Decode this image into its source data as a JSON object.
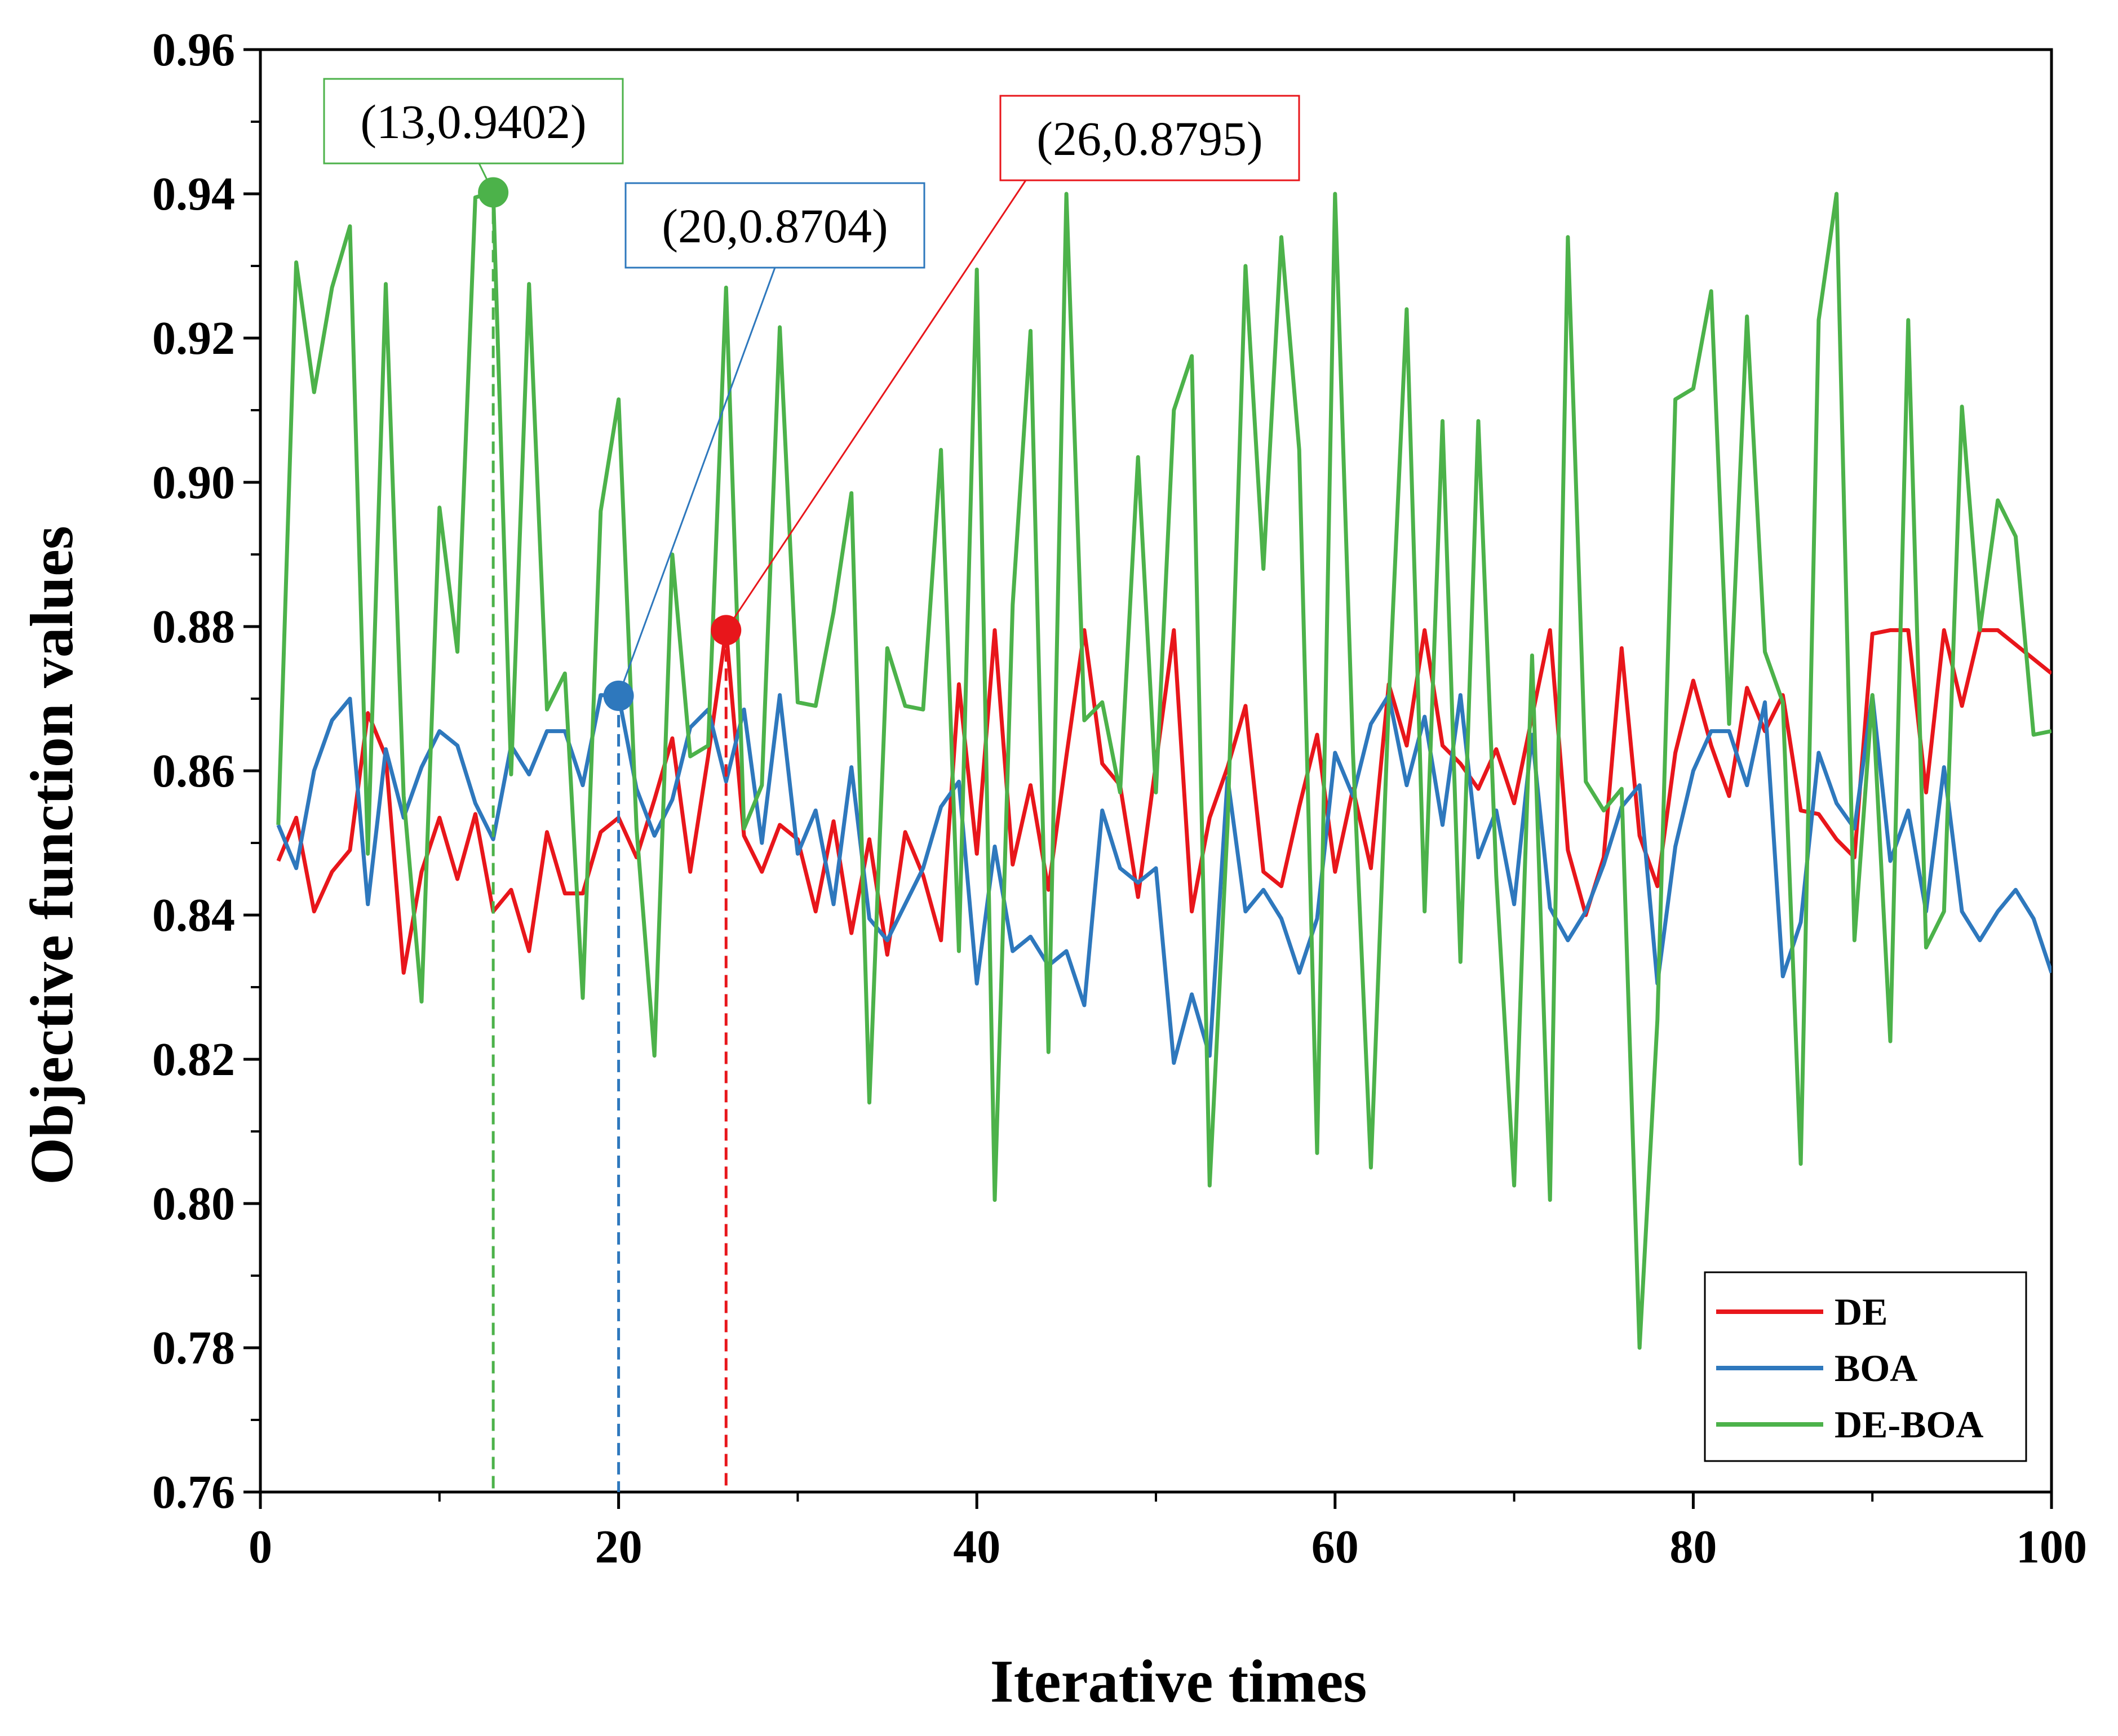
{
  "chart_data": {
    "type": "line",
    "title": "",
    "xlabel": "Iterative times",
    "ylabel": "Objective function values",
    "xlim": [
      0,
      100
    ],
    "ylim": [
      0.76,
      0.96
    ],
    "xticks": [
      0,
      20,
      40,
      60,
      80,
      100
    ],
    "xtick_labels": [
      "0",
      "20",
      "40",
      "60",
      "80",
      "100"
    ],
    "yticks": [
      0.76,
      0.78,
      0.8,
      0.82,
      0.84,
      0.86,
      0.88,
      0.9,
      0.92,
      0.94,
      0.96
    ],
    "ytick_labels": [
      "0.76",
      "0.78",
      "0.80",
      "0.82",
      "0.84",
      "0.86",
      "0.88",
      "0.90",
      "0.92",
      "0.94",
      "0.96"
    ],
    "legend_position": "bottom-right",
    "grid": false,
    "x": [
      1,
      2,
      3,
      4,
      5,
      6,
      7,
      8,
      9,
      10,
      11,
      12,
      13,
      14,
      15,
      16,
      17,
      18,
      19,
      20,
      21,
      22,
      23,
      24,
      25,
      26,
      27,
      28,
      29,
      30,
      31,
      32,
      33,
      34,
      35,
      36,
      37,
      38,
      39,
      40,
      41,
      42,
      43,
      44,
      45,
      46,
      47,
      48,
      49,
      50,
      51,
      52,
      53,
      54,
      55,
      56,
      57,
      58,
      59,
      60,
      61,
      62,
      63,
      64,
      65,
      66,
      67,
      68,
      69,
      70,
      71,
      72,
      73,
      74,
      75,
      76,
      77,
      78,
      79,
      80,
      81,
      82,
      83,
      84,
      85,
      86,
      87,
      88,
      89,
      90,
      91,
      92,
      93,
      94,
      95,
      96,
      97,
      98,
      99,
      100
    ],
    "series": [
      {
        "name": "DE",
        "color": "#e8161b",
        "values": [
          0.8475,
          0.8535,
          0.8405,
          0.846,
          0.849,
          0.868,
          0.862,
          0.832,
          0.846,
          0.8535,
          0.845,
          0.854,
          0.8405,
          0.8435,
          0.835,
          0.8515,
          0.843,
          0.843,
          0.8515,
          0.8535,
          0.848,
          0.856,
          0.8645,
          0.846,
          0.862,
          0.8795,
          0.851,
          0.846,
          0.8525,
          0.8505,
          0.8405,
          0.853,
          0.8375,
          0.8505,
          0.8345,
          0.8515,
          0.8455,
          0.8365,
          0.872,
          0.8485,
          0.8795,
          0.847,
          0.858,
          0.8435,
          0.862,
          0.8795,
          0.861,
          0.858,
          0.8425,
          0.861,
          0.8795,
          0.8405,
          0.8535,
          0.8605,
          0.869,
          0.846,
          0.844,
          0.855,
          0.865,
          0.846,
          0.8575,
          0.8465,
          0.872,
          0.8635,
          0.8795,
          0.8635,
          0.861,
          0.8575,
          0.863,
          0.8555,
          0.8675,
          0.8795,
          0.849,
          0.84,
          0.848,
          0.877,
          0.851,
          0.844,
          0.8625,
          0.8725,
          0.8635,
          0.8565,
          0.8715,
          0.8655,
          0.8705,
          0.8545,
          0.854,
          0.8505,
          0.848,
          0.879,
          0.8795,
          0.8795,
          0.857,
          0.8795,
          0.869,
          0.8795,
          0.8795,
          0.8775,
          0.8755,
          0.8735
        ]
      },
      {
        "name": "BOA",
        "color": "#2e78bd",
        "values": [
          0.8525,
          0.8465,
          0.86,
          0.867,
          0.87,
          0.8415,
          0.863,
          0.8535,
          0.8605,
          0.8655,
          0.8635,
          0.8555,
          0.8505,
          0.8635,
          0.8595,
          0.8655,
          0.8655,
          0.858,
          0.8705,
          0.8704,
          0.8575,
          0.851,
          0.856,
          0.866,
          0.8685,
          0.8585,
          0.8685,
          0.85,
          0.8705,
          0.8485,
          0.8545,
          0.8415,
          0.8605,
          0.8395,
          0.8365,
          0.8415,
          0.8465,
          0.855,
          0.8585,
          0.8305,
          0.8495,
          0.835,
          0.837,
          0.833,
          0.835,
          0.8275,
          0.8545,
          0.8465,
          0.8445,
          0.8465,
          0.8195,
          0.829,
          0.8205,
          0.859,
          0.8405,
          0.8435,
          0.8395,
          0.832,
          0.8395,
          0.8625,
          0.8565,
          0.8665,
          0.8705,
          0.858,
          0.8675,
          0.8525,
          0.8705,
          0.848,
          0.8545,
          0.8415,
          0.865,
          0.841,
          0.8365,
          0.8405,
          0.847,
          0.855,
          0.858,
          0.8305,
          0.8495,
          0.86,
          0.8655,
          0.8655,
          0.858,
          0.8695,
          0.8315,
          0.839,
          0.8625,
          0.8555,
          0.852,
          0.8705,
          0.8475,
          0.8545,
          0.8405,
          0.8605,
          0.8405,
          0.8365,
          0.8405,
          0.8435,
          0.8395,
          0.832
        ]
      },
      {
        "name": "DE-BOA",
        "color": "#4cb24a",
        "values": [
          0.8525,
          0.9305,
          0.9125,
          0.927,
          0.9355,
          0.8485,
          0.9275,
          0.8565,
          0.828,
          0.8965,
          0.8765,
          0.9395,
          0.9402,
          0.8595,
          0.9275,
          0.8685,
          0.8735,
          0.8285,
          0.896,
          0.9115,
          0.852,
          0.8205,
          0.89,
          0.862,
          0.8635,
          0.927,
          0.852,
          0.858,
          0.9215,
          0.8695,
          0.869,
          0.882,
          0.8985,
          0.814,
          0.877,
          0.869,
          0.8685,
          0.9045,
          0.835,
          0.9295,
          0.8005,
          0.883,
          0.921,
          0.821,
          0.94,
          0.867,
          0.8695,
          0.857,
          0.9035,
          0.857,
          0.91,
          0.9175,
          0.8025,
          0.8525,
          0.93,
          0.888,
          0.934,
          0.9045,
          0.807,
          0.94,
          0.8625,
          0.805,
          0.8695,
          0.924,
          0.8405,
          0.9085,
          0.8335,
          0.9085,
          0.8455,
          0.8025,
          0.876,
          0.8005,
          0.934,
          0.8585,
          0.8545,
          0.8575,
          0.78,
          0.8255,
          0.9115,
          0.913,
          0.9265,
          0.8665,
          0.923,
          0.8765,
          0.8695,
          0.8055,
          0.9225,
          0.94,
          0.8365,
          0.8705,
          0.8225,
          0.9225,
          0.8355,
          0.8405,
          0.9105,
          0.8795,
          0.8975,
          0.8925,
          0.865,
          0.8655
        ]
      }
    ],
    "annotations": [
      {
        "series": "DE-BOA",
        "x": 13,
        "y": 0.9402,
        "label": "(13,0.9402)",
        "color": "#4cb24a"
      },
      {
        "series": "BOA",
        "x": 20,
        "y": 0.8704,
        "label": "(20,0.8704)",
        "color": "#2e78bd"
      },
      {
        "series": "DE",
        "x": 26,
        "y": 0.8795,
        "label": "(26,0.8795)",
        "color": "#e8161b"
      }
    ]
  }
}
